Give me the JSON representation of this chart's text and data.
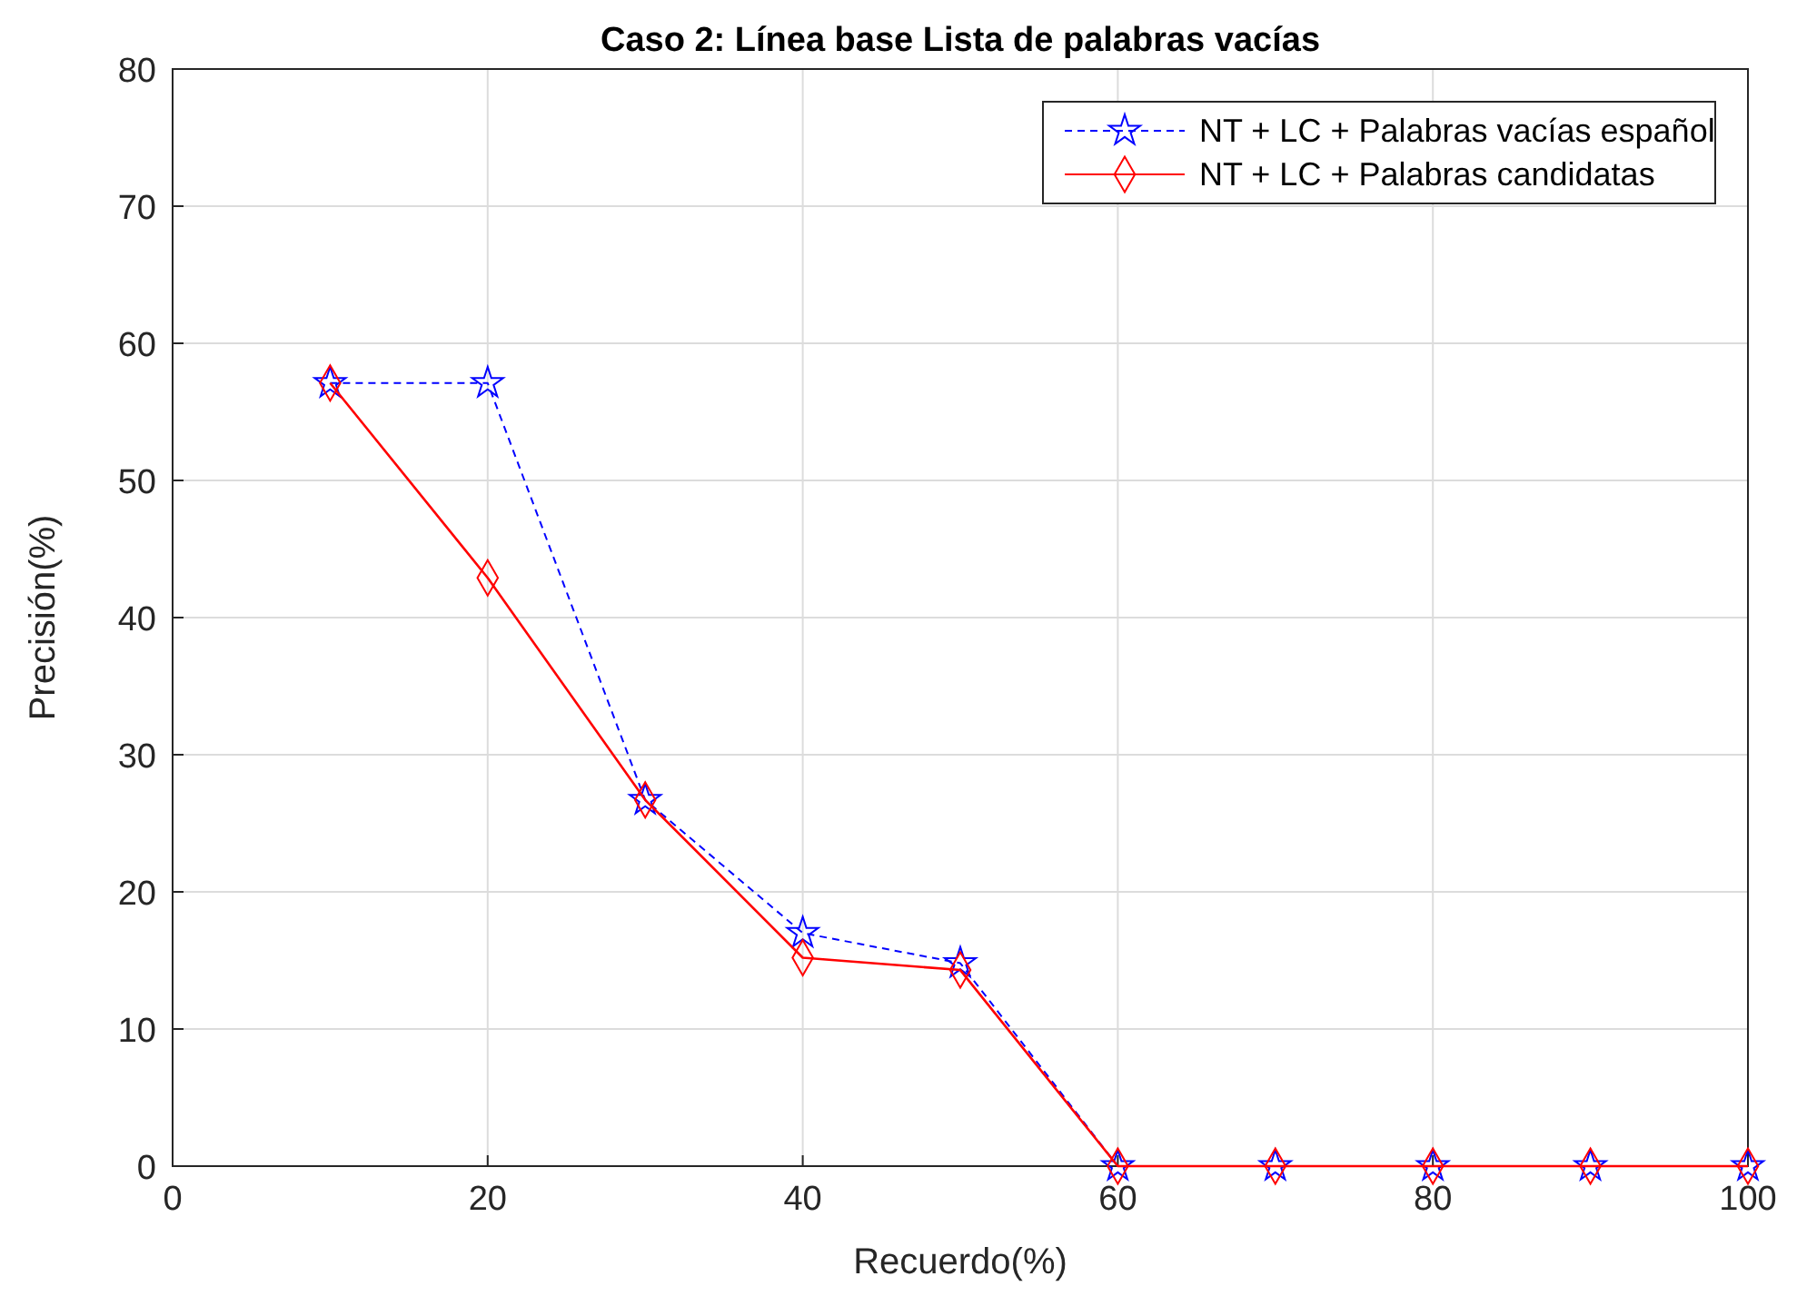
{
  "chart_data": {
    "type": "line",
    "title": "Caso 2: Línea base Lista de palabras vacías",
    "xlabel": "Recuerdo(%)",
    "ylabel": "Precisión(%)",
    "x": [
      10,
      20,
      30,
      40,
      50,
      60,
      70,
      80,
      90,
      100
    ],
    "series": [
      {
        "name": "NT + LC + Palabras vacías español",
        "color": "#0000ff",
        "marker": "star",
        "line_style": "dashed",
        "values": [
          57.1,
          57.1,
          26.7,
          17.0,
          14.8,
          0,
          0,
          0,
          0,
          0
        ]
      },
      {
        "name": "NT + LC + Palabras candidatas",
        "color": "#ff0000",
        "marker": "diamond",
        "line_style": "solid",
        "values": [
          57.1,
          42.9,
          26.7,
          15.2,
          14.3,
          0,
          0,
          0,
          0,
          0
        ]
      }
    ],
    "xlim": [
      0,
      100
    ],
    "xticks": [
      0,
      20,
      40,
      60,
      80,
      100
    ],
    "ylim": [
      0,
      80
    ],
    "yticks": [
      0,
      10,
      20,
      30,
      40,
      50,
      60,
      70,
      80
    ],
    "grid": true,
    "legend": "top right"
  }
}
